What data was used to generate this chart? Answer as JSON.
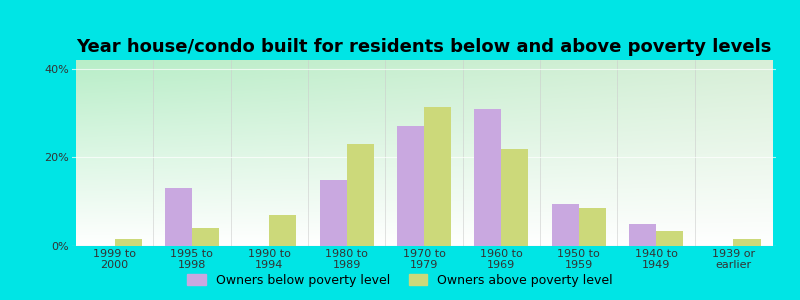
{
  "title": "Year house/condo built for residents below and above poverty levels",
  "categories": [
    "1999 to\n2000",
    "1995 to\n1998",
    "1990 to\n1994",
    "1980 to\n1989",
    "1970 to\n1979",
    "1960 to\n1969",
    "1950 to\n1959",
    "1940 to\n1949",
    "1939 or\nearlier"
  ],
  "below_poverty": [
    0.0,
    13.0,
    0.0,
    15.0,
    27.0,
    31.0,
    9.5,
    5.0,
    0.0
  ],
  "above_poverty": [
    1.5,
    4.0,
    7.0,
    23.0,
    31.5,
    22.0,
    8.5,
    3.5,
    1.5
  ],
  "below_color": "#c9a8e0",
  "above_color": "#ccd97a",
  "ylim": [
    0,
    42
  ],
  "yticks": [
    0,
    20,
    40
  ],
  "ytick_labels": [
    "0%",
    "20%",
    "40%"
  ],
  "background_outer": "#00e5e5",
  "background_inner_topleft": "#b8eec8",
  "background_inner_topright": "#d8efd8",
  "background_inner_bottom": "#ffffff",
  "bar_width": 0.35,
  "title_fontsize": 13,
  "tick_fontsize": 8,
  "legend_fontsize": 9,
  "legend_below_label": "Owners below poverty level",
  "legend_above_label": "Owners above poverty level"
}
